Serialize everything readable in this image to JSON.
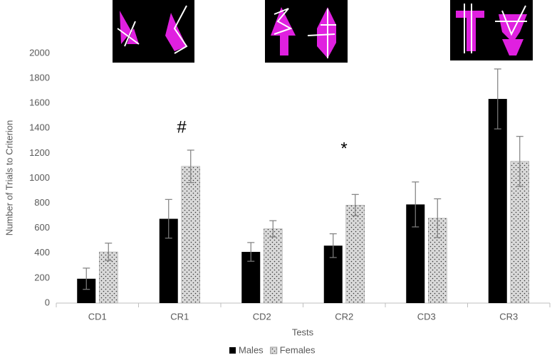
{
  "chart_data": {
    "type": "bar",
    "y_label": "Number of Trials to Criterion",
    "x_label": "Tests",
    "categories": [
      "CD1",
      "CR1",
      "CD2",
      "CR2",
      "CD3",
      "CR3"
    ],
    "series": [
      {
        "name": "Males",
        "color": "#000000",
        "values": [
          195,
          675,
          410,
          460,
          790,
          1635
        ],
        "errors": [
          85,
          155,
          75,
          95,
          180,
          240
        ]
      },
      {
        "name": "Females",
        "color": "#d9d9d9",
        "pattern": "dots",
        "values": [
          410,
          1095,
          595,
          785,
          680,
          1135
        ],
        "errors": [
          70,
          130,
          65,
          85,
          155,
          200
        ]
      }
    ],
    "annotations": [
      "#",
      "*"
    ],
    "ylim": [
      0,
      2000
    ],
    "yticks": [
      0,
      200,
      400,
      600,
      800,
      1000,
      1200,
      1400,
      1600,
      1800,
      2000
    ],
    "grid": false,
    "legend": "bottom"
  }
}
